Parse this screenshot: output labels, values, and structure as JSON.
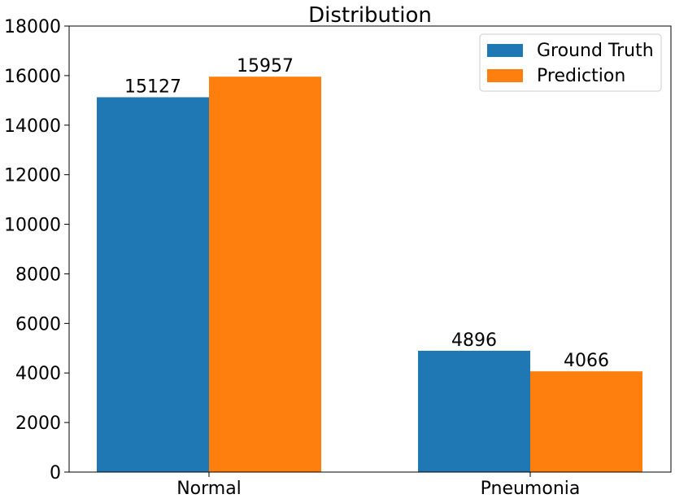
{
  "chart_data": {
    "type": "bar",
    "title": "Distribution",
    "xlabel": "",
    "ylabel": "",
    "categories": [
      "Normal",
      "Pneumonia"
    ],
    "series": [
      {
        "name": "Ground Truth",
        "values": [
          15127,
          4896
        ],
        "color": "#1f77b4"
      },
      {
        "name": "Prediction",
        "values": [
          15957,
          4066
        ],
        "color": "#ff7f0e"
      }
    ],
    "ylim": [
      0,
      18000
    ],
    "yticks": [
      0,
      2000,
      4000,
      6000,
      8000,
      10000,
      12000,
      14000,
      16000,
      18000
    ],
    "grid": false,
    "legend_position": "top-right",
    "data_labels": true
  }
}
